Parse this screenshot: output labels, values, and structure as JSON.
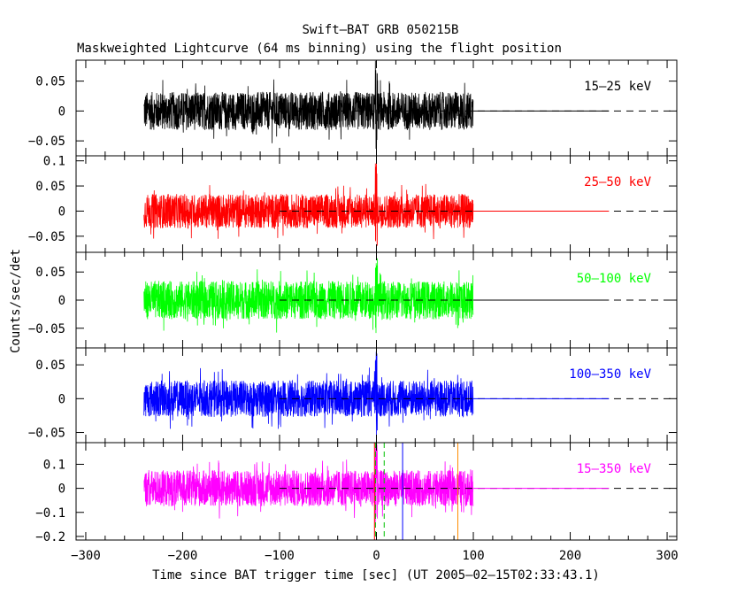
{
  "chart_data": {
    "type": "line",
    "title": "Swift–BAT GRB 050215B",
    "subtitle": "Maskweighted Lightcurve (64 ms binning) using the flight position",
    "xlabel": "Time since BAT trigger time [sec] (UT 2005–02–15T02:33:43.1)",
    "ylabel": "Counts/sec/det",
    "xlim": [
      -310,
      310
    ],
    "x_ticks": [
      -300,
      -200,
      -100,
      0,
      100,
      200,
      300
    ],
    "x_tick_labels": [
      "−300",
      "−200",
      "−100",
      "0",
      "100",
      "200",
      "300"
    ],
    "data_span": [
      -240,
      100
    ],
    "zero_line_solid": [
      100,
      240
    ],
    "zero_line_dashed": [
      -100,
      310
    ],
    "panels": [
      {
        "name": "15–25 keV",
        "color": "#000000",
        "ylim": [
          -0.075,
          0.085
        ],
        "y_ticks": [
          -0.05,
          0,
          0.05
        ],
        "y_tick_labels": [
          "−0.05",
          "0",
          "0.05"
        ],
        "noise_amplitude": 0.032,
        "peak_max": 0.085,
        "peak_min": -0.068
      },
      {
        "name": "25–50 keV",
        "color": "#ff0000",
        "ylim": [
          -0.082,
          0.11
        ],
        "y_ticks": [
          -0.05,
          0,
          0.05,
          0.1
        ],
        "y_tick_labels": [
          "−0.05",
          "0",
          "0.05",
          "0.1"
        ],
        "noise_amplitude": 0.034,
        "peak_max": 0.105,
        "peak_min": -0.072
      },
      {
        "name": "50–100 keV",
        "color": "#00ff00",
        "ylim": [
          -0.085,
          0.085
        ],
        "y_ticks": [
          -0.05,
          0,
          0.05
        ],
        "y_tick_labels": [
          "−0.05",
          "0",
          "0.05"
        ],
        "noise_amplitude": 0.034,
        "peak_max": 0.075,
        "peak_min": -0.07
      },
      {
        "name": "100–350 keV",
        "color": "#0000ff",
        "ylim": [
          -0.065,
          0.075
        ],
        "y_ticks": [
          -0.05,
          0,
          0.05
        ],
        "y_tick_labels": [
          "−0.05",
          "0",
          "0.05"
        ],
        "noise_amplitude": 0.027,
        "peak_max": 0.07,
        "peak_min": -0.063
      },
      {
        "name": "15–350 keV",
        "color": "#ff00ff",
        "ylim": [
          -0.215,
          0.19
        ],
        "y_ticks": [
          -0.2,
          -0.1,
          0,
          0.1
        ],
        "y_tick_labels": [
          "−0.2",
          "−0.1",
          "0",
          "0.1"
        ],
        "noise_amplitude": 0.075,
        "peak_max": 0.185,
        "peak_min": -0.15
      }
    ],
    "markers": [
      {
        "x": -1,
        "color": "#00c000",
        "style": "dashed"
      },
      {
        "x": 8,
        "color": "#00c000",
        "style": "dashed"
      },
      {
        "x": -2,
        "color": "#ff0000",
        "style": "solid"
      },
      {
        "x": 27,
        "color": "#0000ff",
        "style": "solid"
      },
      {
        "x": 84,
        "color": "#ff8c00",
        "style": "solid"
      }
    ],
    "grid": false
  }
}
